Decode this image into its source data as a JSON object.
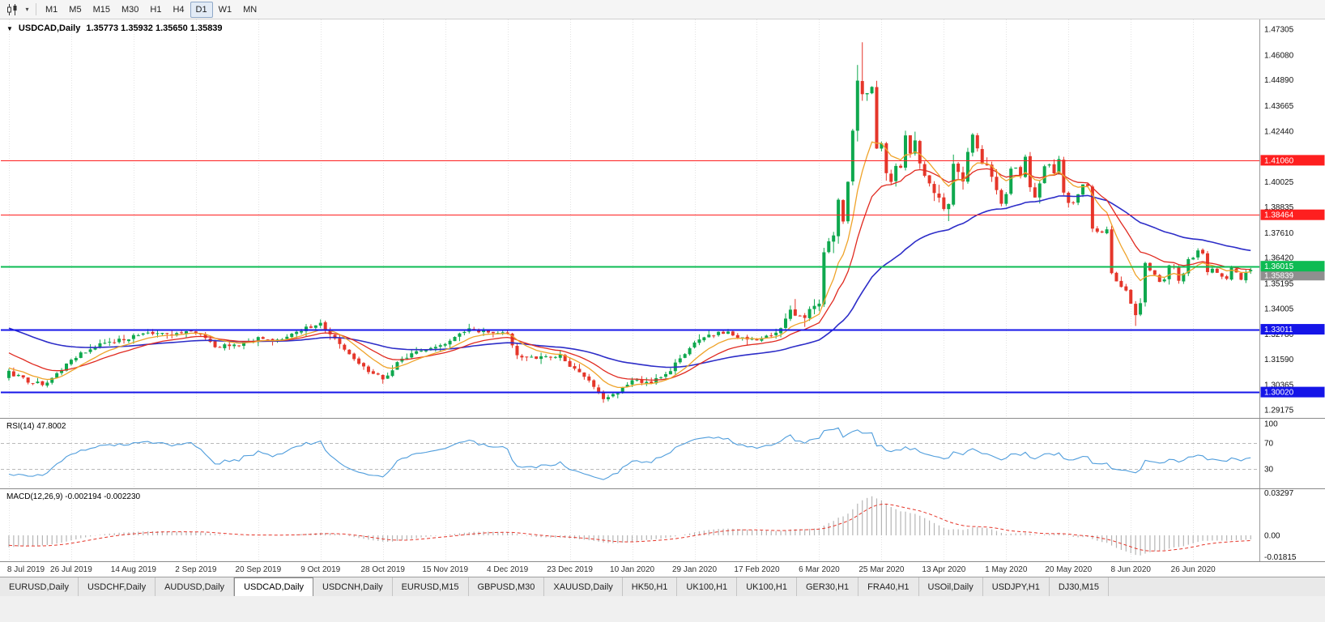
{
  "icons": {
    "caret_down": "▾",
    "collapse": "▼"
  },
  "toolbar": {
    "timeframes": [
      "M1",
      "M5",
      "M15",
      "M30",
      "H1",
      "H4",
      "D1",
      "W1",
      "MN"
    ],
    "active": "D1"
  },
  "chart": {
    "symbol": "USDCAD,Daily",
    "ohlc": "1.35773 1.35932 1.35650 1.35839"
  },
  "indicators": {
    "rsi_label": "RSI(14) 47.8002",
    "macd_label": "MACD(12,26,9) -0.002194 -0.002230"
  },
  "tabs": {
    "active_index": 3,
    "items": [
      "EURUSD,Daily",
      "USDCHF,Daily",
      "AUDUSD,Daily",
      "USDCAD,Daily",
      "USDCNH,Daily",
      "EURUSD,M15",
      "GBPUSD,M30",
      "XAUUSD,Daily",
      "HK50,H1",
      "UK100,H1",
      "UK100,H1",
      "GER30,H1",
      "FRA40,H1",
      "USOil,Daily",
      "USDJPY,H1",
      "DJ30,M15"
    ],
    "active_label": "USDCAD,Daily"
  },
  "colors": {
    "up": "#0fa84e",
    "down": "#e5362a",
    "ma_red": "#e02a20",
    "ma_orange": "#efa32a",
    "ma_blue": "#2d2dc8",
    "hline_red": "#fe1f1f",
    "hline_green": "#0ebb53",
    "hline_blue": "#1515e8",
    "rsi": "#4f9ddc",
    "rsi_level": "#b9b9b9",
    "macd_hist": "#b5b5b5",
    "macd_signal": "#e5362a",
    "grid": "#e3e3e3",
    "axis_text": "#101010",
    "bid_label_bg": "#8f8f8f"
  },
  "chart_data": {
    "type": "candlestick",
    "symbol": "USDCAD",
    "timeframe": "Daily",
    "title": "USDCAD,Daily",
    "ohlc_text": "1.35773 1.35932 1.35650 1.35839",
    "candle_count": 260,
    "price_range": [
      1.29175,
      1.47305
    ],
    "price_ticks": [
      "1.47305",
      "1.46080",
      "1.44890",
      "1.43665",
      "1.42440",
      "1.40025",
      "1.38835",
      "1.37610",
      "1.36420",
      "1.35195",
      "1.34005",
      "1.32780",
      "1.31590",
      "1.30365",
      "1.29175"
    ],
    "hlines": [
      {
        "price": 1.4106,
        "label": "1.41060",
        "color": "red"
      },
      {
        "price": 1.38464,
        "label": "1.38464",
        "color": "red"
      },
      {
        "price": 1.36015,
        "label": "1.36015",
        "color": "green"
      },
      {
        "price": 1.33011,
        "label": "1.33011",
        "color": "blue"
      },
      {
        "price": 1.3002,
        "label": "1.30020",
        "color": "blue"
      }
    ],
    "bid": {
      "value": "1.35839"
    },
    "last": {
      "o": 1.35773,
      "h": 1.35932,
      "l": 1.3565,
      "c": 1.35839
    },
    "date_labels": [
      "8 Jul 2019",
      "26 Jul 2019",
      "14 Aug 2019",
      "2 Sep 2019",
      "20 Sep 2019",
      "9 Oct 2019",
      "28 Oct 2019",
      "15 Nov 2019",
      "4 Dec 2019",
      "23 Dec 2019",
      "10 Jan 2020",
      "29 Jan 2020",
      "17 Feb 2020",
      "6 Mar 2020",
      "25 Mar 2020",
      "13 Apr 2020",
      "1 May 2020",
      "20 May 2020",
      "8 Jun 2020",
      "26 Jun 2020"
    ],
    "rsi_axis": [
      "100",
      "70",
      "30"
    ],
    "rsi_period": 14,
    "rsi_current": 47.8002,
    "macd_axis": [
      "0.03297",
      "0.00",
      "-0.01815"
    ],
    "macd_params": [
      12,
      26,
      9
    ],
    "macd_current": -0.002194,
    "macd_signal_current": -0.00223,
    "ma_periods": {
      "red": 18,
      "orange": 9,
      "blue": 52
    },
    "close_anchors": [
      [
        -60,
        1.339
      ],
      [
        -42,
        1.3445
      ],
      [
        -30,
        1.344
      ],
      [
        -22,
        1.3425
      ],
      [
        -15,
        1.3405
      ],
      [
        -10,
        1.325
      ],
      [
        -5,
        1.3085
      ],
      [
        -2,
        1.305
      ],
      [
        0,
        1.3095
      ],
      [
        4,
        1.3055
      ],
      [
        8,
        1.304
      ],
      [
        13,
        1.316
      ],
      [
        18,
        1.322
      ],
      [
        26,
        1.3265
      ],
      [
        31,
        1.329
      ],
      [
        35,
        1.328
      ],
      [
        39,
        1.329
      ],
      [
        43,
        1.322
      ],
      [
        48,
        1.323
      ],
      [
        52,
        1.326
      ],
      [
        56,
        1.3245
      ],
      [
        61,
        1.33
      ],
      [
        65,
        1.333
      ],
      [
        69,
        1.323
      ],
      [
        73,
        1.313
      ],
      [
        78,
        1.3065
      ],
      [
        82,
        1.316
      ],
      [
        86,
        1.3205
      ],
      [
        91,
        1.3235
      ],
      [
        96,
        1.33
      ],
      [
        100,
        1.329
      ],
      [
        104,
        1.328
      ],
      [
        106,
        1.317
      ],
      [
        111,
        1.3165
      ],
      [
        115,
        1.3175
      ],
      [
        117,
        1.313
      ],
      [
        120,
        1.308
      ],
      [
        124,
        1.2975
      ],
      [
        126,
        1.2985
      ],
      [
        130,
        1.3055
      ],
      [
        134,
        1.3045
      ],
      [
        138,
        1.311
      ],
      [
        143,
        1.3235
      ],
      [
        146,
        1.327
      ],
      [
        150,
        1.329
      ],
      [
        153,
        1.3255
      ],
      [
        156,
        1.325
      ],
      [
        159,
        1.327
      ],
      [
        161,
        1.331
      ],
      [
        163,
        1.3385
      ],
      [
        166,
        1.336
      ],
      [
        169,
        1.3425
      ],
      [
        170,
        1.366
      ],
      [
        172,
        1.375
      ],
      [
        173,
        1.393
      ],
      [
        174,
        1.3805
      ],
      [
        175,
        1.3995
      ],
      [
        176,
        1.4235
      ],
      [
        177,
        1.45
      ],
      [
        178,
        1.4405
      ],
      [
        179,
        1.4425
      ],
      [
        180,
        1.445
      ],
      [
        181,
        1.4175
      ],
      [
        182,
        1.4185
      ],
      [
        183,
        1.4035
      ],
      [
        184,
        1.399
      ],
      [
        185,
        1.409
      ],
      [
        186,
        1.406
      ],
      [
        187,
        1.421
      ],
      [
        188,
        1.414
      ],
      [
        189,
        1.419
      ],
      [
        190,
        1.409
      ],
      [
        191,
        1.402
      ],
      [
        192,
        1.4005
      ],
      [
        193,
        1.396
      ],
      [
        195,
        1.3875
      ],
      [
        196,
        1.3905
      ],
      [
        197,
        1.409
      ],
      [
        198,
        1.404
      ],
      [
        199,
        1.4005
      ],
      [
        200,
        1.415
      ],
      [
        201,
        1.422
      ],
      [
        202,
        1.416
      ],
      [
        203,
        1.4075
      ],
      [
        204,
        1.409
      ],
      [
        205,
        1.4025
      ],
      [
        206,
        1.396
      ],
      [
        207,
        1.3895
      ],
      [
        208,
        1.394
      ],
      [
        209,
        1.4075
      ],
      [
        210,
        1.4065
      ],
      [
        211,
        1.403
      ],
      [
        212,
        1.4125
      ],
      [
        213,
        1.3975
      ],
      [
        214,
        1.392
      ],
      [
        215,
        1.4
      ],
      [
        216,
        1.4075
      ],
      [
        217,
        1.409
      ],
      [
        218,
        1.4045
      ],
      [
        219,
        1.4105
      ],
      [
        220,
        1.3955
      ],
      [
        221,
        1.3895
      ],
      [
        222,
        1.391
      ],
      [
        223,
        1.395
      ],
      [
        224,
        1.3985
      ],
      [
        225,
        1.3975
      ],
      [
        226,
        1.3785
      ],
      [
        227,
        1.376
      ],
      [
        228,
        1.377
      ],
      [
        229,
        1.378
      ],
      [
        230,
        1.357
      ],
      [
        231,
        1.3525
      ],
      [
        232,
        1.3505
      ],
      [
        233,
        1.349
      ],
      [
        234,
        1.3425
      ],
      [
        235,
        1.3365
      ],
      [
        236,
        1.342
      ],
      [
        237,
        1.3615
      ],
      [
        238,
        1.359
      ],
      [
        239,
        1.356
      ],
      [
        240,
        1.353
      ],
      [
        241,
        1.3545
      ],
      [
        242,
        1.36
      ],
      [
        243,
        1.3595
      ],
      [
        244,
        1.353
      ],
      [
        245,
        1.356
      ],
      [
        246,
        1.363
      ],
      [
        247,
        1.3645
      ],
      [
        248,
        1.3675
      ],
      [
        249,
        1.3665
      ],
      [
        250,
        1.358
      ],
      [
        251,
        1.359
      ],
      [
        252,
        1.357
      ],
      [
        253,
        1.3545
      ],
      [
        254,
        1.355
      ],
      [
        255,
        1.36
      ],
      [
        256,
        1.357
      ],
      [
        257,
        1.3545
      ],
      [
        258,
        1.3575
      ],
      [
        259,
        1.35839
      ]
    ],
    "high_overrides": {
      "65": 1.3348,
      "96": 1.3327,
      "177": 1.456,
      "178": 1.4668
    },
    "low_overrides": {
      "8": 1.3028,
      "78": 1.3042,
      "124": 1.2951,
      "235": 1.3317
    }
  }
}
